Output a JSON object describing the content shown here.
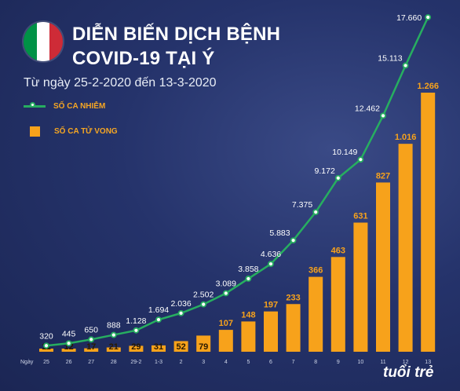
{
  "header": {
    "title_line1": "DIỄN BIẾN DỊCH BỆNH",
    "title_line2": "COVID-19 TẠI Ý",
    "subtitle": "Từ ngày 25-2-2020 đến 13-3-2020"
  },
  "colors": {
    "infections_line": "#27ae60",
    "deaths_bar": "#f7a21b",
    "background": "#1f2c5e",
    "flag": [
      "#009246",
      "#ffffff",
      "#ce2b37"
    ]
  },
  "logo_text": "tuổi trẻ",
  "chart_data": {
    "type": "bar",
    "x_prefix": "Ngày",
    "categories": [
      "25",
      "26",
      "27",
      "28",
      "29-2",
      "1-3",
      "2",
      "3",
      "4",
      "5",
      "6",
      "7",
      "8",
      "9",
      "10",
      "11",
      "12",
      "13"
    ],
    "series": [
      {
        "name": "SỐ CA NHIỄM",
        "type": "line",
        "values": [
          320,
          445,
          650,
          888,
          1128,
          1694,
          2036,
          2502,
          3089,
          3858,
          4636,
          5883,
          7375,
          9172,
          10149,
          12462,
          15113,
          17660
        ],
        "labels": [
          "320",
          "445",
          "650",
          "888",
          "1.128",
          "1.694",
          "2.036",
          "2.502",
          "3.089",
          "3.858",
          "4.636",
          "5.883",
          "7.375",
          "9.172",
          "10.149",
          "12.462",
          "15.113",
          "17.660"
        ]
      },
      {
        "name": "SỐ CA TỬ VONG",
        "type": "bar",
        "values": [
          11,
          12,
          17,
          21,
          29,
          31,
          52,
          79,
          107,
          148,
          197,
          233,
          366,
          463,
          631,
          827,
          1016,
          1266
        ],
        "labels": [
          "11",
          "12",
          "17",
          "21",
          "29",
          "31",
          "52",
          "79",
          "107",
          "148",
          "197",
          "233",
          "366",
          "463",
          "631",
          "827",
          "1.016",
          "1.266"
        ]
      }
    ],
    "legend_position": "top-left",
    "grid": false
  }
}
